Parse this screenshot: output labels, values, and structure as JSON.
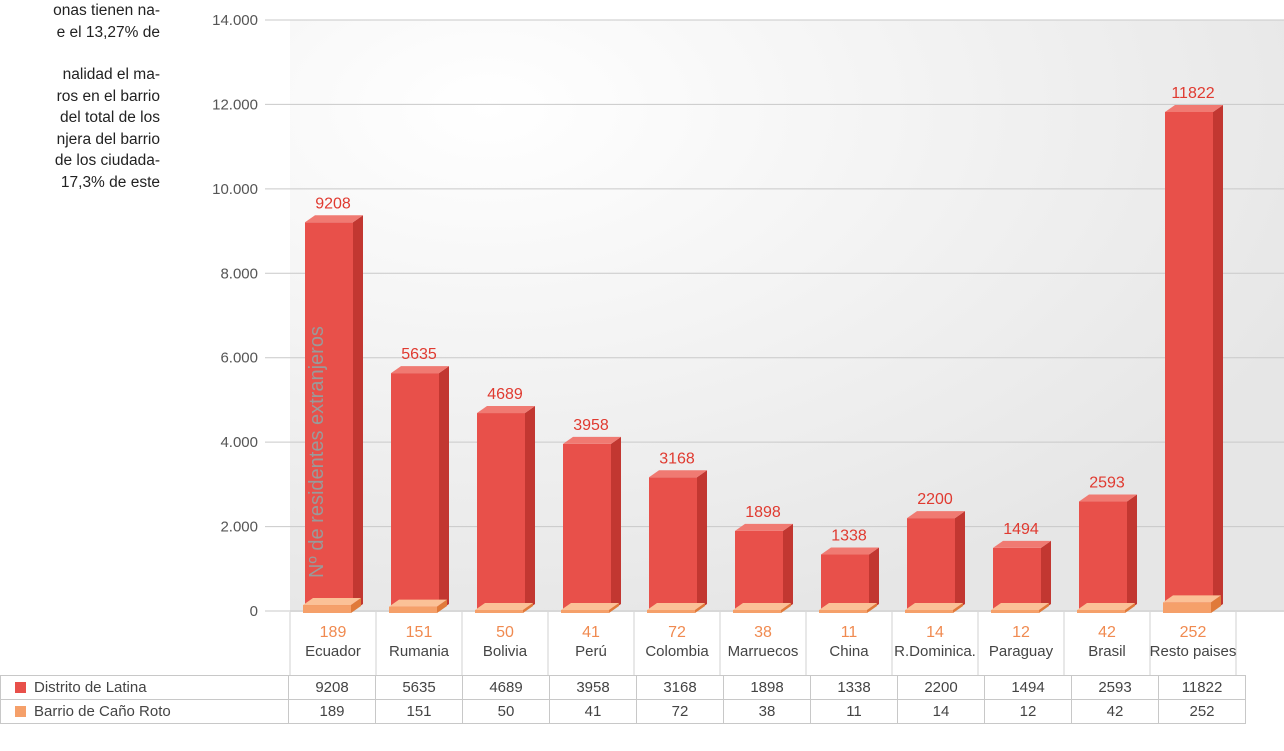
{
  "text_lines": [
    "onas tienen na-",
    "e el 13,27% de",
    "",
    "nalidad el ma-",
    "ros en el barrio",
    "del total de los",
    "njera del barrio",
    "de los ciudada-",
    "17,3% de este"
  ],
  "colors": {
    "latina": "#e8504a",
    "latina_side": "#c23731",
    "latina_top": "#f07a72",
    "canoroto": "#f5a06a",
    "canoroto_side": "#e07a3a",
    "canoroto_top": "#fbc197",
    "grid": "#c9c9c9",
    "plot_bg": "#ececec"
  },
  "chart_data": {
    "type": "bar",
    "ylabel": "Nº de residentes extranjeros",
    "ylim": [
      0,
      14000
    ],
    "yticks": [
      "0",
      "2.000",
      "4.000",
      "6.000",
      "8.000",
      "10.000",
      "12.000",
      "14.000"
    ],
    "categories": [
      "Ecuador",
      "Rumania",
      "Bolivia",
      "Perú",
      "Colombia",
      "Marruecos",
      "China",
      "R.Dominica.",
      "Paraguay",
      "Brasil",
      "Resto paises"
    ],
    "series": [
      {
        "name": "Distrito de Latina",
        "values": [
          9208,
          5635,
          4689,
          3958,
          3168,
          1898,
          1338,
          2200,
          1494,
          2593,
          11822
        ]
      },
      {
        "name": "Barrio de Caño Roto",
        "values": [
          189,
          151,
          50,
          41,
          72,
          38,
          11,
          14,
          12,
          42,
          252
        ]
      }
    ],
    "grid": true,
    "legend": "bottom-table"
  }
}
